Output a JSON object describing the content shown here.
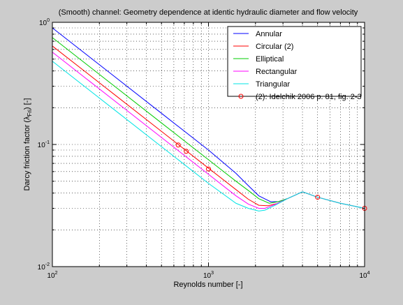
{
  "chart_data": {
    "type": "line",
    "title": "(Smooth) channel: Geometry dependence at identic hydraulic diameter and flow velocity",
    "xlabel": "Reynolds number [-]",
    "ylabel": "Darcy friction factor (λ",
    "ylabel_sub": "Fri",
    "ylabel_tail": ") [-]",
    "xscale": "log",
    "yscale": "log",
    "xlim": [
      100,
      10000
    ],
    "ylim": [
      0.01,
      1
    ],
    "grid": true,
    "legend_position": "top-right",
    "x_ticks": [
      {
        "value": 100,
        "base": "10",
        "exp": "2"
      },
      {
        "value": 1000,
        "base": "10",
        "exp": "3"
      },
      {
        "value": 10000,
        "base": "10",
        "exp": "4"
      }
    ],
    "y_ticks": [
      {
        "value": 0.01,
        "base": "10",
        "exp": "-2"
      },
      {
        "value": 0.1,
        "base": "10",
        "exp": "-1"
      },
      {
        "value": 1,
        "base": "10",
        "exp": "0"
      }
    ],
    "series": [
      {
        "name": "Annular",
        "color": "#0000ff",
        "marker": "none",
        "points": [
          [
            100,
            0.9
          ],
          [
            250,
            0.36
          ],
          [
            500,
            0.18
          ],
          [
            1000,
            0.09
          ],
          [
            1500,
            0.058
          ],
          [
            1800,
            0.046
          ],
          [
            2100,
            0.038
          ],
          [
            2500,
            0.034
          ],
          [
            2800,
            0.034
          ],
          [
            3200,
            0.036
          ],
          [
            4000,
            0.041
          ],
          [
            5000,
            0.037
          ],
          [
            7000,
            0.033
          ],
          [
            10000,
            0.03
          ]
        ]
      },
      {
        "name": "Circular (2)",
        "color": "#ff0000",
        "marker": "none",
        "points": [
          [
            100,
            0.64
          ],
          [
            250,
            0.256
          ],
          [
            500,
            0.128
          ],
          [
            1000,
            0.064
          ],
          [
            1500,
            0.0427
          ],
          [
            1800,
            0.0356
          ],
          [
            2100,
            0.0318
          ],
          [
            2400,
            0.0315
          ],
          [
            2800,
            0.033
          ],
          [
            3200,
            0.036
          ],
          [
            4000,
            0.041
          ],
          [
            5000,
            0.037
          ],
          [
            7000,
            0.033
          ],
          [
            10000,
            0.03
          ]
        ]
      },
      {
        "name": "Elliptical",
        "color": "#00cc00",
        "marker": "none",
        "points": [
          [
            100,
            0.75
          ],
          [
            250,
            0.3
          ],
          [
            500,
            0.15
          ],
          [
            1000,
            0.075
          ],
          [
            1500,
            0.05
          ],
          [
            1800,
            0.042
          ],
          [
            2100,
            0.036
          ],
          [
            2450,
            0.033
          ],
          [
            2800,
            0.034
          ],
          [
            3200,
            0.036
          ],
          [
            4000,
            0.041
          ],
          [
            5000,
            0.037
          ],
          [
            7000,
            0.033
          ],
          [
            10000,
            0.03
          ]
        ]
      },
      {
        "name": "Rectangular",
        "color": "#ff00ff",
        "marker": "none",
        "points": [
          [
            100,
            0.57
          ],
          [
            250,
            0.228
          ],
          [
            500,
            0.114
          ],
          [
            1000,
            0.057
          ],
          [
            1500,
            0.038
          ],
          [
            1800,
            0.0325
          ],
          [
            2100,
            0.03
          ],
          [
            2300,
            0.03
          ],
          [
            2700,
            0.0325
          ],
          [
            3200,
            0.036
          ],
          [
            4000,
            0.041
          ],
          [
            5000,
            0.037
          ],
          [
            7000,
            0.033
          ],
          [
            10000,
            0.03
          ]
        ]
      },
      {
        "name": "Triangular",
        "color": "#00e5e5",
        "marker": "none",
        "points": [
          [
            100,
            0.48
          ],
          [
            250,
            0.192
          ],
          [
            500,
            0.096
          ],
          [
            1000,
            0.048
          ],
          [
            1500,
            0.033
          ],
          [
            1800,
            0.03
          ],
          [
            2100,
            0.0285
          ],
          [
            2300,
            0.029
          ],
          [
            2700,
            0.032
          ],
          [
            3200,
            0.036
          ],
          [
            4000,
            0.041
          ],
          [
            5000,
            0.037
          ],
          [
            7000,
            0.033
          ],
          [
            10000,
            0.03
          ]
        ]
      },
      {
        "name": "(2): Idelchik 2006 p. 81, fig. 2-3",
        "color": "#ff0000",
        "marker": "circle",
        "line": "none",
        "points": [
          [
            640,
            0.099
          ],
          [
            720,
            0.088
          ],
          [
            1000,
            0.063
          ],
          [
            5000,
            0.037
          ],
          [
            10000,
            0.03
          ]
        ]
      }
    ]
  }
}
